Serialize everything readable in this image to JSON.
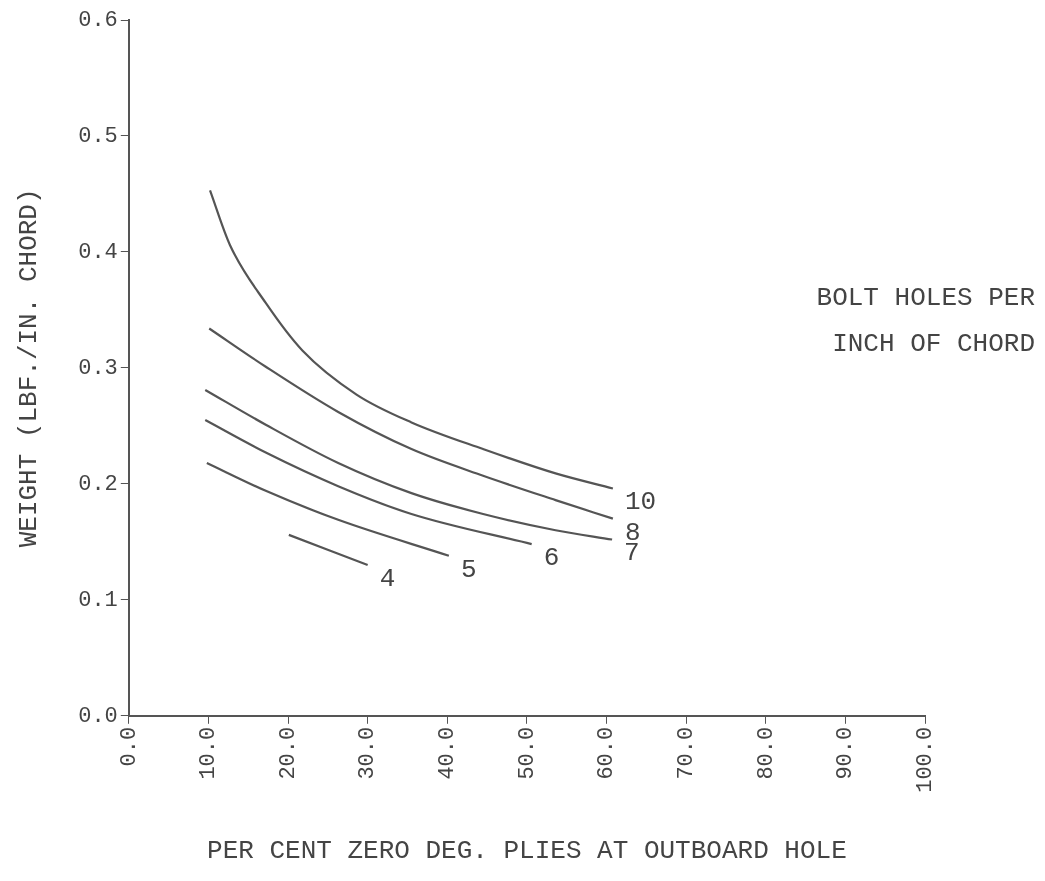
{
  "chart_data": {
    "type": "line",
    "xlabel": "PER CENT ZERO DEG. PLIES AT OUTBOARD HOLE",
    "ylabel": "WEIGHT (LBF./IN. CHORD)",
    "annotations": [
      "BOLT HOLES PER\nINCH OF CHORD"
    ],
    "xlim": [
      0,
      100
    ],
    "ylim": [
      0,
      0.6
    ],
    "xticks": [
      {
        "value": 0,
        "label": "0.0"
      },
      {
        "value": 10,
        "label": "10.0"
      },
      {
        "value": 20,
        "label": "20.0"
      },
      {
        "value": 30,
        "label": "30.0"
      },
      {
        "value": 40,
        "label": "40.0"
      },
      {
        "value": 50,
        "label": "50.0"
      },
      {
        "value": 60,
        "label": "60.0"
      },
      {
        "value": 70,
        "label": "70.0"
      },
      {
        "value": 80,
        "label": "80.0"
      },
      {
        "value": 90,
        "label": "90.0"
      },
      {
        "value": 100,
        "label": "100.0"
      }
    ],
    "yticks": [
      {
        "value": 0,
        "label": "0.0"
      },
      0.1,
      0.2,
      0.3,
      0.4,
      0.5,
      0.6
    ],
    "grid": false,
    "legend": false,
    "marker": "none",
    "line_style": "solid",
    "series": [
      {
        "name": "10",
        "color": "#555555",
        "x": [
          10.2,
          12.7,
          17.2,
          21.8,
          28.6,
          35.5,
          44.5,
          53.6,
          60.8
        ],
        "values": [
          0.453,
          0.406,
          0.356,
          0.315,
          0.277,
          0.253,
          0.23,
          0.209,
          0.196
        ]
      },
      {
        "name": "8",
        "color": "#555555",
        "x": [
          10.1,
          17.2,
          26.3,
          35.5,
          44.5,
          53.6,
          60.8
        ],
        "values": [
          0.334,
          0.301,
          0.262,
          0.23,
          0.207,
          0.186,
          0.17
        ]
      },
      {
        "name": "7",
        "color": "#555555",
        "x": [
          9.6,
          17.2,
          26.3,
          35.5,
          44.5,
          53.6,
          60.7
        ],
        "values": [
          0.281,
          0.251,
          0.218,
          0.192,
          0.174,
          0.16,
          0.152
        ]
      },
      {
        "name": "6",
        "color": "#555555",
        "x": [
          9.6,
          17.2,
          26.3,
          35.5,
          50.6
        ],
        "values": [
          0.255,
          0.227,
          0.198,
          0.174,
          0.148
        ]
      },
      {
        "name": "5",
        "color": "#555555",
        "x": [
          9.8,
          17.2,
          26.3,
          40.2
        ],
        "values": [
          0.218,
          0.194,
          0.169,
          0.138
        ]
      },
      {
        "name": "4",
        "color": "#555555",
        "x": [
          20.1,
          30
        ],
        "values": [
          0.156,
          0.13
        ]
      }
    ]
  }
}
